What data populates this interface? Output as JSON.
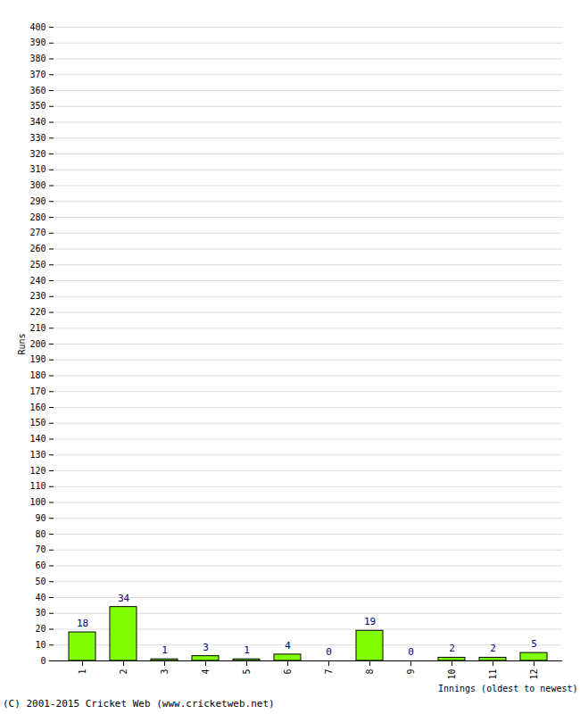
{
  "chart_data": {
    "type": "bar",
    "categories": [
      "1",
      "2",
      "3",
      "4",
      "5",
      "6",
      "7",
      "8",
      "9",
      "10",
      "11",
      "12"
    ],
    "values": [
      18,
      34,
      1,
      3,
      1,
      4,
      0,
      19,
      0,
      2,
      2,
      5
    ],
    "color": "#80ff00",
    "x_label": "Innings (oldest to newest)",
    "y_label": "Runs",
    "caption": "(C) 2001-2015 Cricket Web (www.cricketweb.net)",
    "ylim": [
      0,
      400
    ],
    "yticks": [
      0,
      10,
      20,
      30,
      40,
      50,
      60,
      70,
      80,
      90,
      100,
      110,
      120,
      130,
      140,
      150,
      160,
      170,
      180,
      190,
      200,
      210,
      220,
      230,
      240,
      250,
      260,
      270,
      280,
      290,
      300,
      310,
      320,
      330,
      340,
      350,
      360,
      370,
      380,
      390,
      400
    ],
    "grid": true,
    "data_labels": true
  }
}
